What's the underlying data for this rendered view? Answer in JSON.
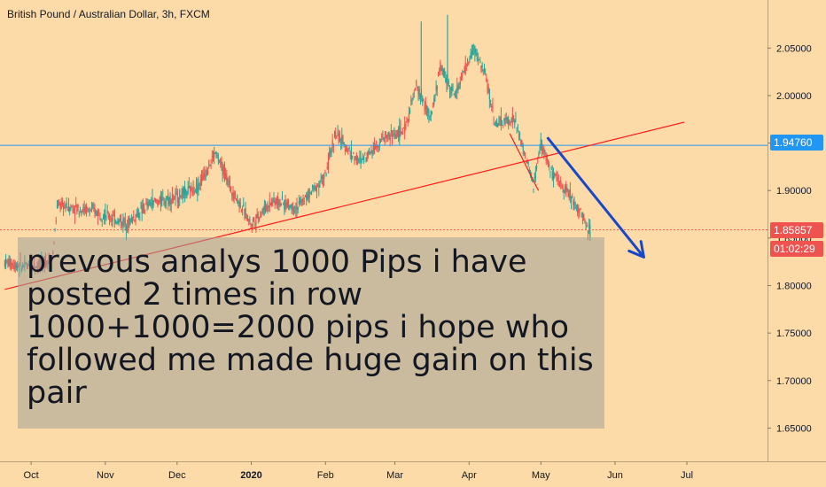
{
  "header": {
    "symbol_title": "British Pound / Australian Dollar, 3h, FXCM"
  },
  "annotation": {
    "text": "prevous analys 1000 Pips i have posted 2 times in row 1000+1000=2000 pips i hope who followed me made huge gain on this pair"
  },
  "price_scale": {
    "tag_horizontal_line": "1.94760",
    "tag_last_price": "1.85857",
    "tag_countdown": "01:02:29"
  },
  "chart_data": {
    "type": "candlestick",
    "title": "British Pound / Australian Dollar, 3h, FXCM",
    "xlabel": "",
    "ylabel": "",
    "ylim": [
      1.615,
      2.095
    ],
    "y_ticks": [
      1.65,
      1.7,
      1.75,
      1.8,
      1.85,
      1.9,
      1.95,
      2.0,
      2.05
    ],
    "y_tick_labels": [
      "1.65000",
      "1.70000",
      "1.75000",
      "1.80000",
      "1.85000",
      "1.90000",
      "1.95000",
      "2.00000",
      "2.05000"
    ],
    "x_tick_labels": [
      "Oct",
      "Nov",
      "Dec",
      "2020",
      "Feb",
      "Mar",
      "Apr",
      "May",
      "Jun",
      "Jul"
    ],
    "price_path": [
      {
        "date": "2019-09-20",
        "price": 1.825
      },
      {
        "date": "2019-09-28",
        "price": 1.82
      },
      {
        "date": "2019-10-05",
        "price": 1.822
      },
      {
        "date": "2019-10-10",
        "price": 1.83
      },
      {
        "date": "2019-10-12",
        "price": 1.885
      },
      {
        "date": "2019-10-18",
        "price": 1.882
      },
      {
        "date": "2019-10-28",
        "price": 1.878
      },
      {
        "date": "2019-11-10",
        "price": 1.865
      },
      {
        "date": "2019-11-20",
        "price": 1.887
      },
      {
        "date": "2019-12-01",
        "price": 1.893
      },
      {
        "date": "2019-12-10",
        "price": 1.905
      },
      {
        "date": "2019-12-17",
        "price": 1.94
      },
      {
        "date": "2019-12-24",
        "price": 1.9
      },
      {
        "date": "2020-01-01",
        "price": 1.865
      },
      {
        "date": "2020-01-10",
        "price": 1.89
      },
      {
        "date": "2020-01-20",
        "price": 1.882
      },
      {
        "date": "2020-02-01",
        "price": 1.915
      },
      {
        "date": "2020-02-05",
        "price": 1.96
      },
      {
        "date": "2020-02-15",
        "price": 1.93
      },
      {
        "date": "2020-02-25",
        "price": 1.955
      },
      {
        "date": "2020-03-05",
        "price": 1.963
      },
      {
        "date": "2020-03-10",
        "price": 2.01
      },
      {
        "date": "2020-03-16",
        "price": 1.975
      },
      {
        "date": "2020-03-20",
        "price": 2.03
      },
      {
        "date": "2020-03-26",
        "price": 2.0
      },
      {
        "date": "2020-04-03",
        "price": 2.05
      },
      {
        "date": "2020-04-08",
        "price": 2.02
      },
      {
        "date": "2020-04-12",
        "price": 1.97
      },
      {
        "date": "2020-04-20",
        "price": 1.975
      },
      {
        "date": "2020-04-28",
        "price": 1.905
      },
      {
        "date": "2020-05-01",
        "price": 1.95
      },
      {
        "date": "2020-05-06",
        "price": 1.915
      },
      {
        "date": "2020-05-12",
        "price": 1.9
      },
      {
        "date": "2020-05-18",
        "price": 1.875
      },
      {
        "date": "2020-05-22",
        "price": 1.855
      }
    ],
    "spikes": [
      {
        "date": "2020-03-12",
        "high": 2.078
      },
      {
        "date": "2020-03-23",
        "high": 2.085
      }
    ],
    "horizontal_line": 1.9476,
    "last_price": 1.85857,
    "trend_line": {
      "start": {
        "date": "2019-09-20",
        "price": 1.796
      },
      "end": {
        "date": "2020-06-30",
        "price": 1.972
      }
    },
    "small_trend_line": {
      "start": {
        "date": "2020-04-18",
        "price": 1.96
      },
      "end": {
        "date": "2020-04-30",
        "price": 1.9
      }
    },
    "projection_arrow": {
      "start": {
        "date": "2020-05-04",
        "price": 1.955
      },
      "end": {
        "date": "2020-06-13",
        "price": 1.83
      }
    },
    "colors": {
      "background": "#fddba8",
      "candle_up": "#26a69a",
      "candle_down": "#ef5350",
      "horizontal_line": "#2196f3",
      "trend_line": "#ff1a1a",
      "arrow": "#1848c8",
      "last_price": "#ef5350"
    }
  }
}
